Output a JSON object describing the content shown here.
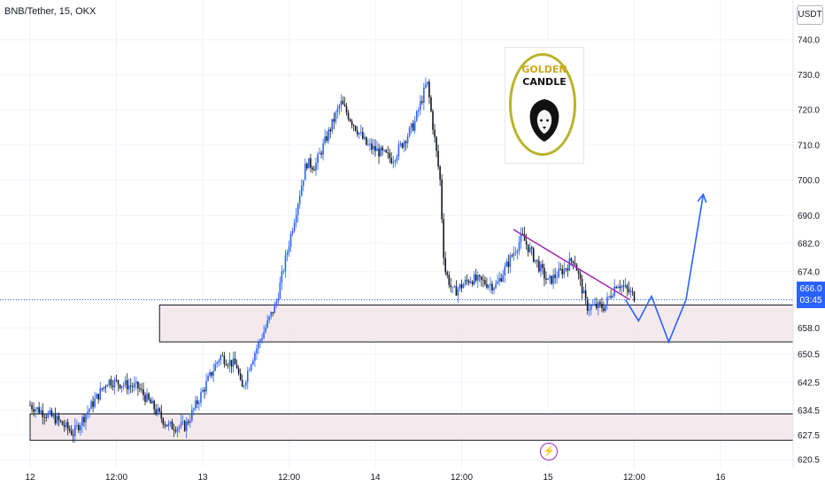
{
  "header": {
    "title": "BNB/Tether, 15, OKX"
  },
  "axis": {
    "currency": "USDT"
  },
  "price_tag": {
    "price": "666.0",
    "countdown": "03:45"
  },
  "logo": {
    "line1": "GOLDEN",
    "line2": "CANDLE"
  },
  "colors": {
    "up": "#2962ff",
    "down": "#131722",
    "trendline": "#9c27b0",
    "projection": "#2962ff",
    "zone_fill": "#f2e6ea"
  },
  "chart_data": {
    "type": "candlestick",
    "title": "BNB/Tether, 15, OKX",
    "ylim": [
      618,
      744
    ],
    "y_ticks": [
      620.5,
      627.5,
      634.5,
      642.5,
      650.5,
      658.0,
      666.0,
      674.0,
      682.0,
      690.0,
      700.0,
      710.0,
      720.0,
      730.0,
      740.0
    ],
    "x_ticks": [
      "12",
      "12:00",
      "13",
      "12:00",
      "14",
      "12:00",
      "15",
      "12:00",
      "16"
    ],
    "last_price": 666.0,
    "price_path": [
      [
        0,
        636
      ],
      [
        0.3,
        632
      ],
      [
        0.5,
        628
      ],
      [
        0.9,
        643
      ],
      [
        1.25,
        641
      ],
      [
        1.6,
        630
      ],
      [
        1.8,
        630
      ],
      [
        2.2,
        650
      ],
      [
        2.4,
        647
      ],
      [
        2.45,
        640
      ],
      [
        2.55,
        648
      ],
      [
        2.85,
        665
      ],
      [
        3.2,
        705
      ],
      [
        3.3,
        704
      ],
      [
        3.6,
        722
      ],
      [
        3.9,
        710
      ],
      [
        4.2,
        706
      ],
      [
        4.45,
        716
      ],
      [
        4.6,
        728
      ],
      [
        4.75,
        700
      ],
      [
        4.8,
        675
      ],
      [
        4.9,
        668
      ],
      [
        5.1,
        672
      ],
      [
        5.4,
        670
      ],
      [
        5.7,
        684
      ],
      [
        6.0,
        671
      ],
      [
        6.2,
        675
      ],
      [
        6.3,
        678
      ],
      [
        6.45,
        664
      ],
      [
        6.65,
        664
      ],
      [
        6.8,
        671
      ],
      [
        7.0,
        667
      ]
    ],
    "zones": [
      {
        "y_low": 654,
        "y_high": 664.5,
        "x_start": 1.5,
        "x_end": "right"
      },
      {
        "y_low": 626,
        "y_high": 633.5,
        "x_start": 0,
        "x_end": "right"
      }
    ],
    "trendline": {
      "points": [
        [
          5.6,
          686
        ],
        [
          6.95,
          666
        ]
      ]
    },
    "projection": {
      "points": [
        [
          6.9,
          666
        ],
        [
          7.05,
          660
        ],
        [
          7.2,
          667
        ],
        [
          7.4,
          654
        ],
        [
          7.6,
          666
        ],
        [
          7.8,
          696
        ]
      ]
    }
  }
}
